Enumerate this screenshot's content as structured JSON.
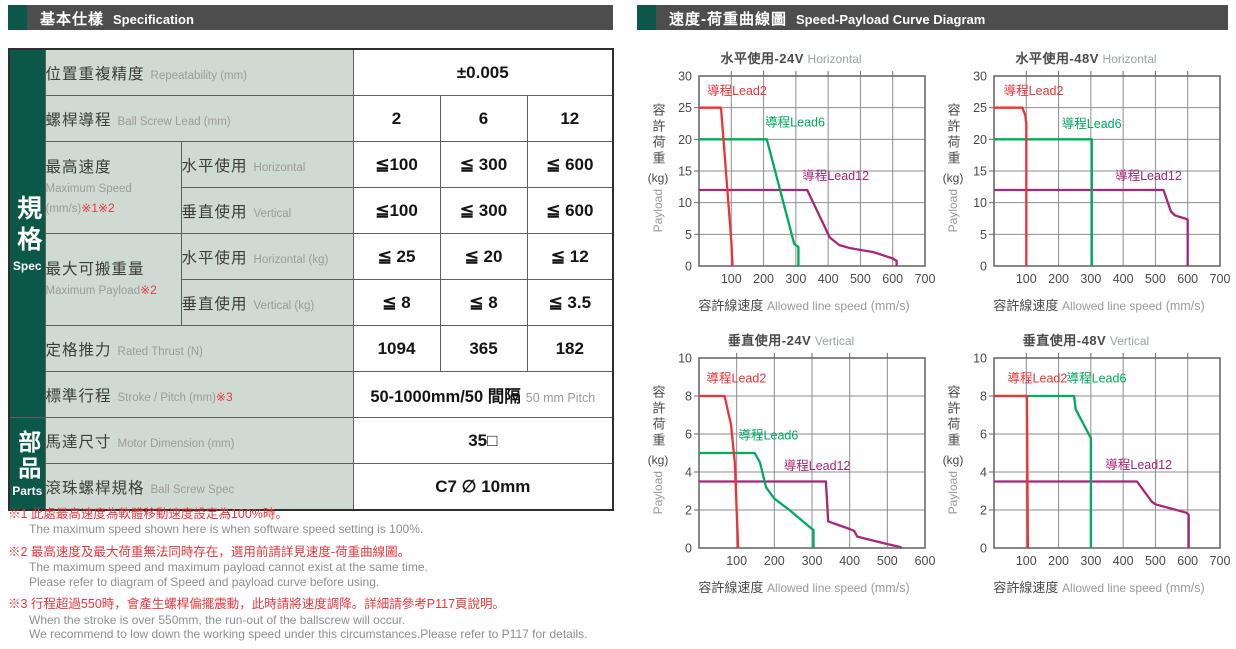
{
  "colors": {
    "accent_teal": "#0d574a",
    "header_bar_gray": "#4d4d4d",
    "table_side_green": "#0b5849",
    "label_bg_sage": "#cfdad3",
    "note_red": "#e8383d",
    "lead2_red": "#f03238",
    "lead6_green": "#00ab5e",
    "lead12_magenta": "#a82678"
  },
  "header_left": {
    "zh": "基本仕樣",
    "en": "Specification"
  },
  "header_right": {
    "zh": "速度-荷重曲線圖",
    "en": "Speed-Payload Curve Diagram"
  },
  "side_labels": {
    "spec_zh": "規格",
    "spec_en": "Spec",
    "parts_zh": "部品",
    "parts_en": "Parts"
  },
  "table": {
    "repeatability": {
      "zh": "位置重複精度",
      "en": "Repeatability (mm)",
      "value": "±0.005"
    },
    "lead": {
      "zh": "螺桿導程",
      "en": "Ball Screw Lead (mm)",
      "values": [
        "2",
        "6",
        "12"
      ]
    },
    "max_speed": {
      "zh": "最高速度",
      "en": "Maximum Speed",
      "unit": "(mm/s)",
      "note": "※1※2",
      "horizontal": {
        "zh": "水平使用",
        "en": "Horizontal",
        "values": [
          "≦100",
          "≦ 300",
          "≦ 600"
        ]
      },
      "vertical": {
        "zh": "垂直使用",
        "en": "Vertical",
        "values": [
          "≦100",
          "≦ 300",
          "≦ 600"
        ]
      }
    },
    "max_payload": {
      "zh": "最大可搬重量",
      "en": "Maximum Payload",
      "note": "※2",
      "horizontal": {
        "zh": "水平使用",
        "en": "Horizontal (kg)",
        "values": [
          "≦ 25",
          "≦ 20",
          "≦ 12"
        ]
      },
      "vertical": {
        "zh": "垂直使用",
        "en": "Vertical (kg)",
        "values": [
          "≦ 8",
          "≦ 8",
          "≦ 3.5"
        ]
      }
    },
    "thrust": {
      "zh": "定格推力",
      "en": "Rated Thrust (N)",
      "values": [
        "1094",
        "365",
        "182"
      ]
    },
    "stroke": {
      "zh": "標準行程",
      "en": "Stroke / Pitch (mm)",
      "note": "※3",
      "value_main": "50-1000mm/50 間隔",
      "value_sub": "50 mm Pitch"
    },
    "motor": {
      "zh": "馬達尺寸",
      "en": "Motor Dimension (mm)",
      "value": "35□"
    },
    "ballscrew": {
      "zh": "滾珠螺桿規格",
      "en": "Ball Screw Spec",
      "value": "C7 ∅ 10mm"
    }
  },
  "footnotes": [
    {
      "zh": "※1 此處最高速度為軟體移動速度設定為100%時。",
      "en": [
        "The maximum speed shown here is when software speed setting is 100%."
      ]
    },
    {
      "zh": "※2 最高速度及最大荷重無法同時存在，選用前請詳見速度-荷重曲線圖。",
      "en": [
        "The maximum speed and maximum payload cannot exist at the same time.",
        "Please refer to diagram of Speed and payload curve before using."
      ]
    },
    {
      "zh": "※3 行程超過550時，會產生螺桿偏擺震動，此時請將速度調降。詳細請參考P117頁說明。",
      "en": [
        "When the stroke is over 550mm, the run-out of the ballscrew will occur.",
        "We recommend to low down the working speed under this circumstances.Please refer to P117 for details."
      ]
    }
  ],
  "chart_data": {
    "type": "line",
    "common": {
      "ylabel_zh": "容許荷重",
      "ylabel_unit": "(kg)",
      "ylabel_en": "Payload",
      "xlabel_zh": "容許線速度",
      "xlabel_en": "Allowed line speed",
      "xlabel_unit": "(mm/s)",
      "grid": true
    },
    "charts": [
      {
        "title_zh": "水平使用-24V",
        "title_en": "Horizontal",
        "xlim": [
          0,
          700
        ],
        "ylim": [
          0,
          30
        ],
        "xstep": 100,
        "ystep": 5,
        "series": [
          {
            "name": "導程Lead2",
            "color": "#f03238",
            "label_pos": [
              25,
              27
            ],
            "points": [
              [
                0,
                25
              ],
              [
                68,
                25
              ],
              [
                100,
                4
              ],
              [
                104,
                0
              ]
            ]
          },
          {
            "name": "導程Lead6",
            "color": "#00ab5e",
            "label_pos": [
              205,
              22
            ],
            "points": [
              [
                0,
                20
              ],
              [
                210,
                20
              ],
              [
                295,
                3.5
              ],
              [
                308,
                3
              ],
              [
                308,
                0
              ]
            ]
          },
          {
            "name": "導程Lead12",
            "color": "#a82678",
            "label_pos": [
              320,
              13.6
            ],
            "points": [
              [
                0,
                12
              ],
              [
                335,
                12
              ],
              [
                405,
                4.5
              ],
              [
                435,
                3.3
              ],
              [
                470,
                2.8
              ],
              [
                540,
                2.2
              ],
              [
                600,
                1.2
              ],
              [
                612,
                0.8
              ],
              [
                612,
                0
              ]
            ]
          }
        ]
      },
      {
        "title_zh": "水平使用-48V",
        "title_en": "Horizontal",
        "xlim": [
          0,
          700
        ],
        "ylim": [
          0,
          30
        ],
        "xstep": 100,
        "ystep": 5,
        "series": [
          {
            "name": "導程Lead2",
            "color": "#f03238",
            "label_pos": [
              30,
              27
            ],
            "points": [
              [
                0,
                25
              ],
              [
                88,
                25
              ],
              [
                97,
                23.8
              ],
              [
                100,
                22.5
              ],
              [
                100,
                0
              ]
            ]
          },
          {
            "name": "導程Lead6",
            "color": "#00ab5e",
            "label_pos": [
              210,
              21.8
            ],
            "points": [
              [
                0,
                20
              ],
              [
                303,
                20
              ],
              [
                303,
                0
              ]
            ]
          },
          {
            "name": "導程Lead12",
            "color": "#a82678",
            "label_pos": [
              375,
              13.6
            ],
            "points": [
              [
                0,
                12
              ],
              [
                525,
                12
              ],
              [
                548,
                8.6
              ],
              [
                560,
                8
              ],
              [
                597,
                7.4
              ],
              [
                600,
                7.3
              ],
              [
                600,
                0
              ]
            ]
          }
        ]
      },
      {
        "title_zh": "垂直使用-24V",
        "title_en": "Vertical",
        "xlim": [
          0,
          600
        ],
        "ylim": [
          0,
          10
        ],
        "xstep": 100,
        "ystep": 2,
        "series": [
          {
            "name": "導程Lead2",
            "color": "#f03238",
            "label_pos": [
              20,
              8.7
            ],
            "points": [
              [
                0,
                8
              ],
              [
                68,
                8
              ],
              [
                85,
                6.5
              ],
              [
                95,
                4.5
              ],
              [
                102,
                1
              ],
              [
                104,
                0
              ]
            ]
          },
          {
            "name": "導程Lead6",
            "color": "#00ab5e",
            "label_pos": [
              105,
              5.7
            ],
            "points": [
              [
                0,
                5
              ],
              [
                148,
                5
              ],
              [
                162,
                4.5
              ],
              [
                178,
                3.2
              ],
              [
                200,
                2.6
              ],
              [
                240,
                2
              ],
              [
                300,
                1
              ],
              [
                304,
                0.95
              ],
              [
                304,
                0
              ]
            ]
          },
          {
            "name": "導程Lead12",
            "color": "#a82678",
            "label_pos": [
              225,
              4.1
            ],
            "points": [
              [
                0,
                3.5
              ],
              [
                337,
                3.5
              ],
              [
                343,
                1.4
              ],
              [
                400,
                1
              ],
              [
                412,
                0.9
              ],
              [
                420,
                0.6
              ],
              [
                480,
                0.3
              ],
              [
                535,
                0.05
              ],
              [
                537,
                0
              ]
            ]
          }
        ]
      },
      {
        "title_zh": "垂直使用-48V",
        "title_en": "Vertical",
        "xlim": [
          0,
          700
        ],
        "ylim": [
          0,
          10
        ],
        "xstep": 100,
        "ystep": 2,
        "series": [
          {
            "name": "導程Lead2",
            "color": "#f03238",
            "label_pos": [
              42,
              8.7
            ],
            "points": [
              [
                0,
                8
              ],
              [
                102,
                8
              ],
              [
                105,
                0
              ]
            ]
          },
          {
            "name": "導程Lead6",
            "color": "#00ab5e",
            "label_pos": [
              225,
              8.7
            ],
            "points": [
              [
                0,
                8
              ],
              [
                248,
                8
              ],
              [
                253,
                7.3
              ],
              [
                298,
                5.85
              ],
              [
                300,
                5.8
              ],
              [
                300,
                0
              ]
            ]
          },
          {
            "name": "導程Lead12",
            "color": "#a82678",
            "label_pos": [
              345,
              4.15
            ],
            "points": [
              [
                0,
                3.5
              ],
              [
                443,
                3.5
              ],
              [
                488,
                2.45
              ],
              [
                500,
                2.3
              ],
              [
                597,
                1.85
              ],
              [
                603,
                1.75
              ],
              [
                603,
                0
              ]
            ]
          }
        ]
      }
    ]
  }
}
